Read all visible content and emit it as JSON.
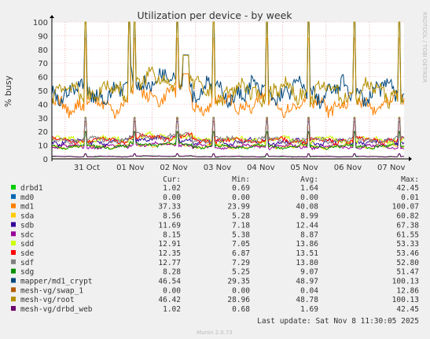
{
  "chart_data": {
    "type": "line",
    "title": "Utilization per device - by week",
    "ylabel": "% busy",
    "xlabel": "",
    "ylim": [
      0,
      100
    ],
    "y_ticks": [
      0,
      10,
      20,
      30,
      40,
      50,
      60,
      70,
      80,
      90,
      100
    ],
    "x_ticks": [
      "31 Oct",
      "01 Nov",
      "02 Nov",
      "03 Nov",
      "04 Nov",
      "05 Nov",
      "06 Nov",
      "07 Nov"
    ],
    "grid": true,
    "side_label": "RRDTOOL / TOBI OETIKER",
    "legend_header": {
      "cur": "Cur:",
      "min": "Min:",
      "avg": "Avg:",
      "max": "Max:"
    },
    "series": [
      {
        "name": "drbd1",
        "color": "#00cc00",
        "cur": "1.02",
        "min": "0.69",
        "avg": "1.64",
        "max": "42.45"
      },
      {
        "name": "md0",
        "color": "#0066b3",
        "cur": "0.00",
        "min": "0.00",
        "avg": "0.00",
        "max": "0.01"
      },
      {
        "name": "md1",
        "color": "#ff8000",
        "cur": "37.33",
        "min": "23.99",
        "avg": "40.08",
        "max": "100.07"
      },
      {
        "name": "sda",
        "color": "#ffcc00",
        "cur": "8.56",
        "min": "5.28",
        "avg": "8.99",
        "max": "60.82"
      },
      {
        "name": "sdb",
        "color": "#330099",
        "cur": "11.69",
        "min": "7.18",
        "avg": "12.44",
        "max": "67.38"
      },
      {
        "name": "sdc",
        "color": "#990099",
        "cur": "8.15",
        "min": "5.38",
        "avg": "8.87",
        "max": "61.55"
      },
      {
        "name": "sdd",
        "color": "#ccff00",
        "cur": "12.91",
        "min": "7.05",
        "avg": "13.86",
        "max": "53.33"
      },
      {
        "name": "sde",
        "color": "#ff0000",
        "cur": "12.35",
        "min": "6.87",
        "avg": "13.51",
        "max": "53.46"
      },
      {
        "name": "sdf",
        "color": "#808080",
        "cur": "12.77",
        "min": "7.29",
        "avg": "13.80",
        "max": "52.80"
      },
      {
        "name": "sdg",
        "color": "#008f00",
        "cur": "8.28",
        "min": "5.25",
        "avg": "9.07",
        "max": "51.47"
      },
      {
        "name": "mapper/md1_crypt",
        "color": "#00487d",
        "cur": "46.54",
        "min": "29.35",
        "avg": "48.97",
        "max": "100.13"
      },
      {
        "name": "mesh-vg/swap_1",
        "color": "#b35a00",
        "cur": "0.00",
        "min": "0.00",
        "avg": "0.04",
        "max": "12.86"
      },
      {
        "name": "mesh-vg/root",
        "color": "#b38f00",
        "cur": "46.42",
        "min": "28.96",
        "avg": "48.78",
        "max": "100.13"
      },
      {
        "name": "mesh-vg/drbd_web",
        "color": "#6b006b",
        "cur": "1.02",
        "min": "0.68",
        "avg": "1.69",
        "max": "42.45"
      }
    ],
    "last_update": "Last update: Sat Nov  8 11:30:05 2025",
    "footer": "Munin 2.0.73"
  }
}
